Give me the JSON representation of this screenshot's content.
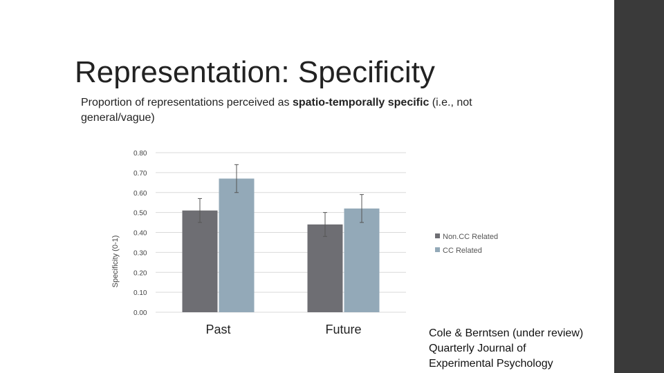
{
  "slide": {
    "title": "Representation: Specificity",
    "subtitle_pre": "Proportion of representations perceived as ",
    "subtitle_bold": "spatio-temporally specific",
    "subtitle_post": " (i.e., not general/vague)",
    "citation_lines": [
      "Cole & Berntsen (under review)",
      "Quarterly Journal of",
      "Experimental Psychology"
    ]
  },
  "colors": {
    "noncc": "#6e6e73",
    "cc": "#93a9b8",
    "grid": "#d9d9d9",
    "sidebar": "#3a3a3a"
  },
  "chart_data": {
    "type": "bar",
    "categories": [
      "Past",
      "Future"
    ],
    "series": [
      {
        "name": "Non.CC Related",
        "values": [
          0.51,
          0.44
        ],
        "error": [
          0.06,
          0.06
        ]
      },
      {
        "name": "CC Related",
        "values": [
          0.67,
          0.52
        ],
        "error": [
          0.07,
          0.07
        ]
      }
    ],
    "ylabel": "Specificity (0-1)",
    "ylim": [
      0,
      0.8
    ],
    "yticks": [
      "0.00",
      "0.10",
      "0.20",
      "0.30",
      "0.40",
      "0.50",
      "0.60",
      "0.70",
      "0.80"
    ],
    "grid": true,
    "legend_position": "right"
  }
}
